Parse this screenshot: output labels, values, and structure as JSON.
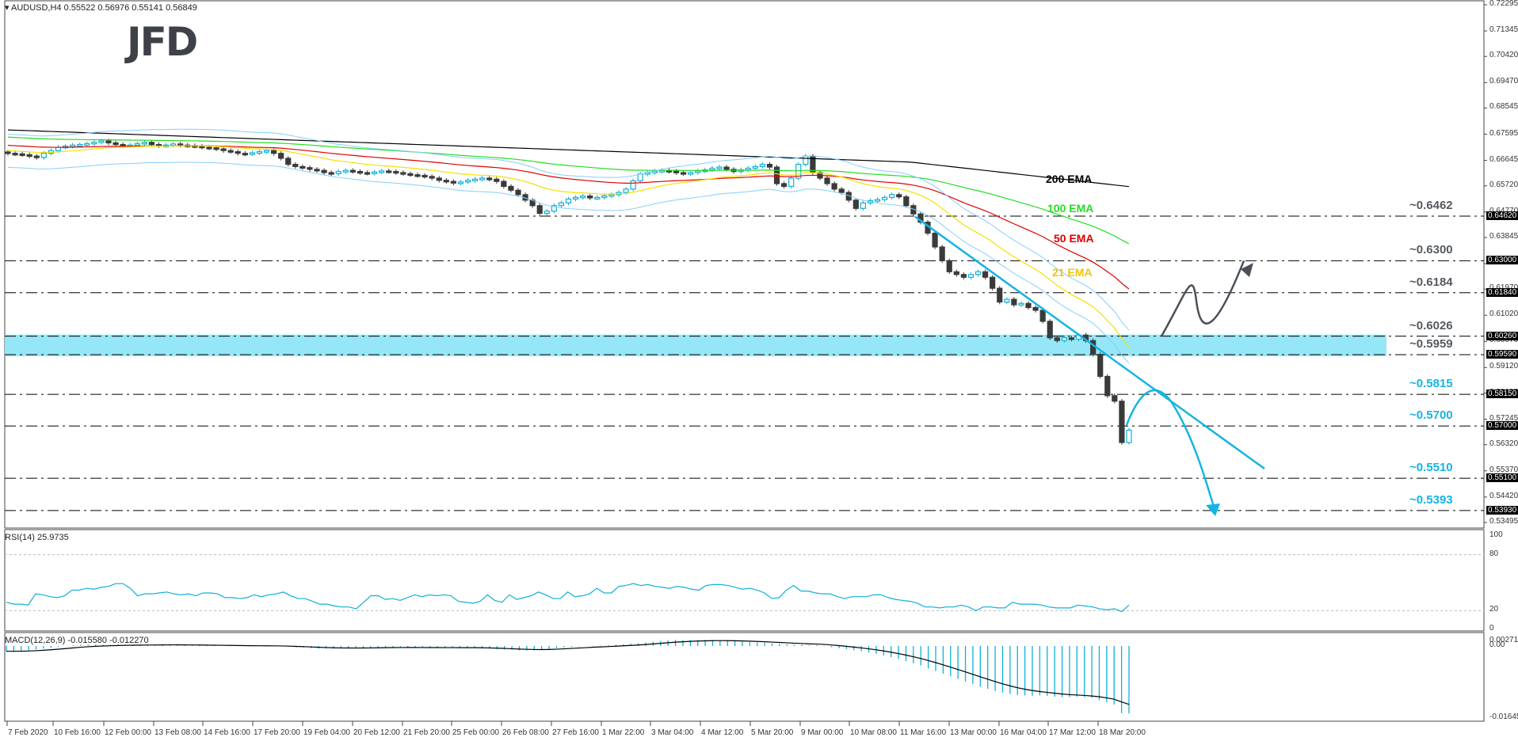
{
  "header": {
    "symbol_line": "AUDUSD,H4  0.55522 0.56976 0.55141 0.56849",
    "logo": "JFD"
  },
  "panels": {
    "rsi_label": "RSI(14) 25.9735",
    "macd_label": "MACD(12,26,9) -0.015580 -0.012270"
  },
  "colors": {
    "bull": "#0fb0d8",
    "bear": "#3a3a3a",
    "ema200": "#000000",
    "ema100": "#22dd22",
    "ema50": "#e00000",
    "ema21": "#f5e000",
    "bollinger": "#87cefa",
    "zone": "#8fe6f7",
    "trend": "#14b4e4",
    "arrow_up": "#4a5058",
    "arrow_down": "#14b4e4"
  },
  "chart_data": [
    {
      "type": "candlestick",
      "title": "AUDUSD,H4",
      "ohlc_last": {
        "open": 0.55522,
        "high": 0.56976,
        "low": 0.55141,
        "close": 0.56849
      },
      "y_ticks": [
        "0.72295",
        "0.71345",
        "0.70420",
        "0.69470",
        "0.68545",
        "0.67595",
        "0.66645",
        "0.65720",
        "0.64770",
        "0.63845",
        "0.62895",
        "0.61970",
        "0.61020",
        "0.60070",
        "0.59120",
        "0.58195",
        "0.57245",
        "0.56320",
        "0.55370",
        "0.54420",
        "0.53495"
      ],
      "highlighted_levels": [
        "0.64620",
        "0.63000",
        "0.61840",
        "0.60260",
        "0.59590",
        "0.58150",
        "0.57000",
        "0.55100",
        "0.53930"
      ],
      "current_price_tag": "0.56849",
      "x_ticks": [
        "7 Feb 2020",
        "10 Feb 16:00",
        "12 Feb 00:00",
        "13 Feb 08:00",
        "14 Feb 16:00",
        "17 Feb 20:00",
        "19 Feb 04:00",
        "20 Feb 12:00",
        "21 Feb 20:00",
        "25 Feb 00:00",
        "26 Feb 08:00",
        "27 Feb 16:00",
        "1 Mar 22:00",
        "3 Mar 04:00",
        "4 Mar 12:00",
        "5 Mar 20:00",
        "9 Mar 00:00",
        "10 Mar 08:00",
        "11 Mar 16:00",
        "13 Mar 00:00",
        "16 Mar 04:00",
        "17 Mar 12:00",
        "18 Mar 20:00"
      ],
      "levels": [
        {
          "label": "~0.6462",
          "value": 0.6462,
          "color": "#555a60"
        },
        {
          "label": "~0.6300",
          "value": 0.63,
          "color": "#555a60"
        },
        {
          "label": "~0.6184",
          "value": 0.6184,
          "color": "#555a60"
        },
        {
          "label": "~0.6026",
          "value": 0.6026,
          "color": "#555a60"
        },
        {
          "label": "~0.5959",
          "value": 0.5959,
          "color": "#555a60"
        },
        {
          "label": "~0.5815",
          "value": 0.5815,
          "color": "#14b4e4"
        },
        {
          "label": "~0.5700",
          "value": 0.57,
          "color": "#14b4e4"
        },
        {
          "label": "~0.5510",
          "value": 0.551,
          "color": "#14b4e4"
        },
        {
          "label": "~0.5393",
          "value": 0.5393,
          "color": "#14b4e4"
        }
      ],
      "support_zone": [
        0.5959,
        0.6026
      ],
      "ema_labels": [
        {
          "text": "200 EMA",
          "color": "#000000"
        },
        {
          "text": "100 EMA",
          "color": "#22dd22"
        },
        {
          "text": "50 EMA",
          "color": "#e00000"
        },
        {
          "text": "21 EMA",
          "color": "#f5c400"
        }
      ],
      "close_series": [
        0.669,
        0.6688,
        0.6685,
        0.668,
        0.6675,
        0.669,
        0.67,
        0.6712,
        0.6716,
        0.672,
        0.6722,
        0.6725,
        0.673,
        0.6735,
        0.6728,
        0.6722,
        0.6718,
        0.672,
        0.6725,
        0.673,
        0.6722,
        0.6718,
        0.672,
        0.6724,
        0.672,
        0.6718,
        0.6716,
        0.6712,
        0.671,
        0.6706,
        0.67,
        0.6696,
        0.669,
        0.6688,
        0.6692,
        0.6696,
        0.67,
        0.669,
        0.6672,
        0.665,
        0.6642,
        0.6638,
        0.6632,
        0.6628,
        0.662,
        0.6616,
        0.6624,
        0.6628,
        0.6624,
        0.662,
        0.6618,
        0.6622,
        0.6626,
        0.6624,
        0.662,
        0.6616,
        0.6612,
        0.661,
        0.6606,
        0.66,
        0.6592,
        0.6588,
        0.6582,
        0.6586,
        0.6592,
        0.6596,
        0.66,
        0.6596,
        0.6588,
        0.657,
        0.6556,
        0.654,
        0.652,
        0.65,
        0.6472,
        0.648,
        0.65,
        0.651,
        0.6524,
        0.653,
        0.6535,
        0.6528,
        0.653,
        0.6536,
        0.654,
        0.6548,
        0.656,
        0.659,
        0.6615,
        0.662,
        0.6625,
        0.6628,
        0.6625,
        0.662,
        0.6616,
        0.662,
        0.6626,
        0.663,
        0.6636,
        0.664,
        0.6632,
        0.6624,
        0.663,
        0.6636,
        0.6642,
        0.665,
        0.664,
        0.658,
        0.657,
        0.66,
        0.665,
        0.668,
        0.662,
        0.66,
        0.658,
        0.656,
        0.6548,
        0.652,
        0.649,
        0.651,
        0.6518,
        0.6522,
        0.653,
        0.654,
        0.6532,
        0.65,
        0.647,
        0.644,
        0.64,
        0.635,
        0.63,
        0.626,
        0.625,
        0.624,
        0.625,
        0.626,
        0.624,
        0.62,
        0.615,
        0.616,
        0.614,
        0.6145,
        0.613,
        0.612,
        0.608,
        0.602,
        0.601,
        0.602,
        0.6015,
        0.603,
        0.601,
        0.596,
        0.588,
        0.581,
        0.579,
        0.564,
        0.5685
      ]
    },
    {
      "type": "line",
      "title": "RSI(14) 25.9735",
      "y_ticks": [
        "100",
        "80",
        "20",
        "0"
      ],
      "ylim": [
        0,
        100
      ],
      "reference_lines": [
        80,
        20
      ],
      "values": [
        29,
        27,
        27,
        26,
        38,
        37,
        35,
        34,
        36,
        42,
        42,
        44,
        43,
        45,
        46,
        49,
        49,
        44,
        36,
        38,
        38,
        39,
        40,
        38,
        37,
        38,
        36,
        39,
        39,
        38,
        34,
        34,
        33,
        34,
        37,
        35,
        37,
        38,
        40,
        36,
        33,
        33,
        30,
        27,
        27,
        25,
        24,
        24,
        22,
        29,
        36,
        36,
        32,
        33,
        31,
        34,
        37,
        35,
        37,
        36,
        37,
        36,
        30,
        29,
        28,
        30,
        37,
        31,
        29,
        37,
        32,
        34,
        36,
        40,
        37,
        33,
        33,
        40,
        35,
        36,
        38,
        44,
        39,
        39,
        46,
        47,
        49,
        47,
        48,
        46,
        45,
        44,
        46,
        45,
        43,
        42,
        47,
        48,
        48,
        47,
        45,
        43,
        44,
        42,
        39,
        33,
        34,
        42,
        47,
        41,
        41,
        39,
        38,
        38,
        35,
        33,
        35,
        35,
        35,
        37,
        37,
        34,
        32,
        31,
        30,
        28,
        24,
        24,
        23,
        24,
        24,
        26,
        24,
        20,
        24,
        24,
        23,
        23,
        29,
        27,
        27,
        27,
        26,
        24,
        23,
        23,
        23,
        26,
        25,
        24,
        22,
        21,
        22,
        19,
        26
      ]
    },
    {
      "type": "bar+line",
      "title": "MACD(12,26,9) -0.015580 -0.012270",
      "y_ticks": [
        "0.002711",
        "0.00",
        "-0.016451"
      ],
      "ylim": [
        -0.016451,
        0.002711
      ],
      "histogram": [
        -0.0012,
        -0.0013,
        -0.0011,
        -0.001,
        -0.0008,
        -0.0006,
        -0.0004,
        -0.0002,
        0.0,
        0.0002,
        0.0003,
        0.0003,
        0.0003,
        0.0003,
        0.0003,
        0.0003,
        0.0003,
        0.0003,
        0.0003,
        0.0003,
        0.0003,
        0.0003,
        0.0003,
        0.0003,
        0.0002,
        0.0002,
        0.0002,
        0.0001,
        0.0001,
        0.0001,
        0.0,
        0.0,
        0.0,
        0.0,
        0.0,
        0.0,
        0.0,
        -0.0001,
        -0.0002,
        -0.0003,
        -0.0004,
        -0.0005,
        -0.0006,
        -0.0006,
        -0.0006,
        -0.0006,
        -0.0005,
        -0.0005,
        -0.0004,
        -0.0004,
        -0.0003,
        -0.0003,
        -0.0003,
        -0.0003,
        -0.0003,
        -0.0003,
        -0.0004,
        -0.0004,
        -0.0004,
        -0.0004,
        -0.0004,
        -0.0004,
        -0.0004,
        -0.0004,
        -0.0005,
        -0.0006,
        -0.0007,
        -0.0008,
        -0.0009,
        -0.001,
        -0.001,
        -0.001,
        -0.0009,
        -0.0007,
        -0.0005,
        -0.0003,
        -0.0002,
        -0.0001,
        0.0,
        0.0001,
        0.0001,
        0.0002,
        0.0003,
        0.0004,
        0.0005,
        0.0006,
        0.0008,
        0.001,
        0.0012,
        0.0013,
        0.0014,
        0.0014,
        0.0014,
        0.0014,
        0.0014,
        0.0014,
        0.0013,
        0.0012,
        0.0011,
        0.001,
        0.0009,
        0.0008,
        0.0007,
        0.0006,
        0.0005,
        0.0004,
        0.0003,
        0.0003,
        0.0002,
        0.0002,
        0.0001,
        -0.0003,
        -0.0005,
        -0.0007,
        -0.001,
        -0.0012,
        -0.0015,
        -0.0018,
        -0.0022,
        -0.0026,
        -0.003,
        -0.0035,
        -0.004,
        -0.0045,
        -0.0052,
        -0.0058,
        -0.0064,
        -0.007,
        -0.0076,
        -0.0082,
        -0.0088,
        -0.0094,
        -0.0099,
        -0.0104,
        -0.0108,
        -0.0111,
        -0.0113,
        -0.0114,
        -0.0115,
        -0.0114,
        -0.0115,
        -0.0117,
        -0.0118,
        -0.0118,
        -0.0117,
        -0.0118,
        -0.012,
        -0.0125,
        -0.013,
        -0.0135,
        -0.0155,
        -0.0156
      ],
      "signal_line": "smoothed histogram (ends -0.012270)"
    }
  ]
}
